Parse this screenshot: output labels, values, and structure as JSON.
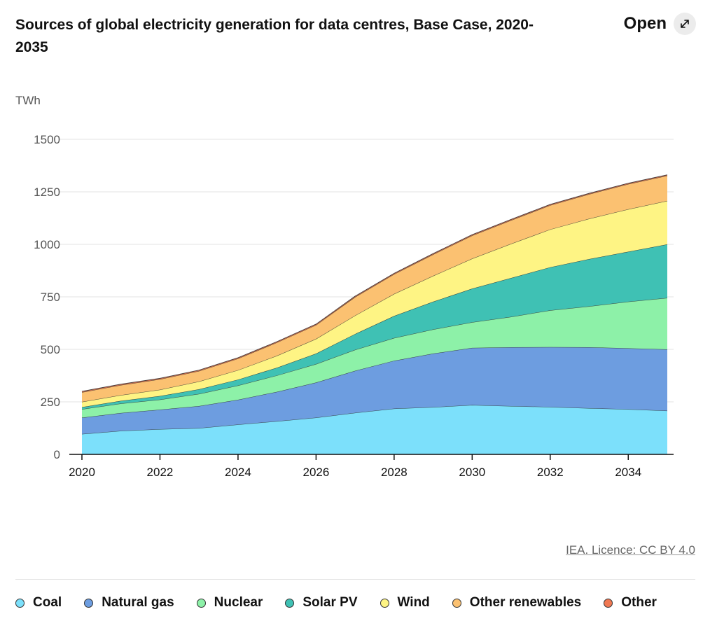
{
  "header": {
    "title": "Sources of global electricity generation for data centres, Base Case, 2020-2035",
    "open_label": "Open",
    "open_icon": "expand-arrows-icon"
  },
  "source": {
    "licence": "IEA. Licence: CC BY 4.0"
  },
  "chart_data": {
    "type": "area",
    "stacked": true,
    "unit_label": "TWh",
    "ylim": [
      0,
      1500
    ],
    "yticks": [
      0,
      250,
      500,
      750,
      1000,
      1250,
      1500
    ],
    "xlim": [
      2020,
      2035
    ],
    "xticks": [
      2020,
      2022,
      2024,
      2026,
      2028,
      2030,
      2032,
      2034
    ],
    "x": [
      2020,
      2021,
      2022,
      2023,
      2024,
      2025,
      2026,
      2027,
      2028,
      2029,
      2030,
      2031,
      2032,
      2033,
      2034,
      2035
    ],
    "grid": true,
    "legend_position": "bottom",
    "series": [
      {
        "name": "Coal",
        "color": "#7ce0fb",
        "values": [
          97,
          112,
          120,
          125,
          142,
          158,
          175,
          198,
          218,
          225,
          235,
          230,
          226,
          220,
          215,
          208
        ]
      },
      {
        "name": "Natural gas",
        "color": "#6d9de0",
        "values": [
          78,
          85,
          93,
          105,
          118,
          140,
          167,
          200,
          228,
          255,
          272,
          280,
          285,
          290,
          290,
          292
        ]
      },
      {
        "name": "Nuclear",
        "color": "#8df1a8",
        "values": [
          40,
          45,
          48,
          58,
          68,
          78,
          88,
          100,
          108,
          115,
          122,
          145,
          175,
          195,
          222,
          245
        ]
      },
      {
        "name": "Solar PV",
        "color": "#3fc1b4",
        "values": [
          10,
          13,
          17,
          22,
          28,
          37,
          50,
          75,
          105,
          132,
          160,
          185,
          205,
          225,
          238,
          255
        ]
      },
      {
        "name": "Wind",
        "color": "#fef484",
        "values": [
          25,
          27,
          30,
          37,
          45,
          57,
          70,
          88,
          105,
          123,
          143,
          163,
          180,
          192,
          202,
          207
        ]
      },
      {
        "name": "Other renewables",
        "color": "#fbc171",
        "values": [
          46,
          48,
          50,
          50,
          55,
          63,
          66,
          88,
          94,
          102,
          110,
          112,
          115,
          117,
          120,
          120
        ]
      },
      {
        "name": "Other",
        "color": "#f07852",
        "values": [
          4,
          4,
          4,
          4,
          4,
          4,
          4,
          4,
          4,
          4,
          4,
          4,
          4,
          4,
          4,
          4
        ]
      }
    ]
  }
}
